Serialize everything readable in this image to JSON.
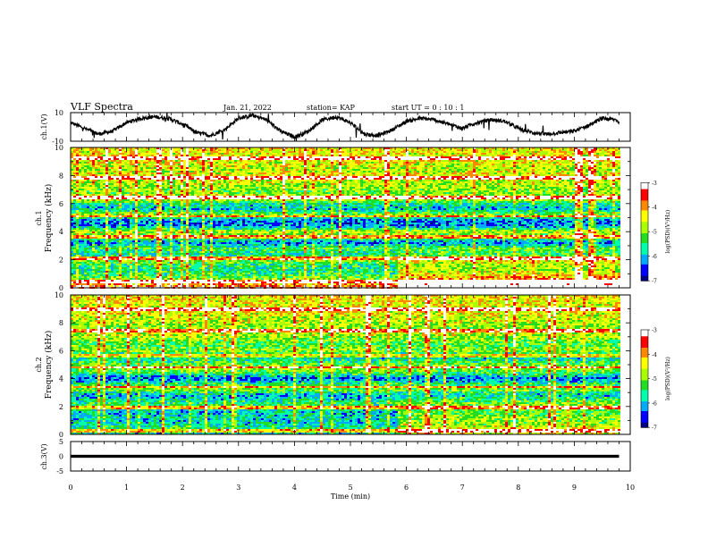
{
  "header": {
    "title": "VLF Spectra",
    "date": "Jan. 21, 2022",
    "station": "station= KAP",
    "start": "start  UT =   0 : 10 : 1"
  },
  "chart_data": [
    {
      "id": "ch1-waveform",
      "type": "line",
      "ylabel": "ch.1(V)",
      "ylim": [
        -10,
        10
      ],
      "yticks": [
        "10",
        "-10"
      ],
      "xlim": [
        0,
        10
      ],
      "x_extent": 9.8,
      "description_values": "noisy quasi-periodic waveform, amplitude about ±5 V, period about 1.5 min",
      "series": [
        {
          "x": [
            0,
            0.25,
            0.5,
            0.75,
            1.0,
            1.25,
            1.5,
            1.75,
            2.0,
            2.25,
            2.5,
            2.75,
            3.0,
            3.25,
            3.5,
            3.75,
            4.0,
            4.25,
            4.5,
            4.75,
            5.0,
            5.25,
            5.5,
            5.75,
            6.0,
            6.25,
            6.5,
            6.75,
            7.0,
            7.25,
            7.5,
            7.75,
            8.0,
            8.25,
            8.5,
            8.75,
            9.0,
            9.25,
            9.5,
            9.75,
            9.8
          ],
          "values": [
            3,
            -1,
            -5,
            -3,
            3,
            6,
            7,
            6,
            2,
            -4,
            -6,
            -2,
            6,
            8,
            5,
            -3,
            -7,
            -3,
            5,
            7,
            3,
            -5,
            -6,
            -2,
            4,
            6,
            5,
            2,
            -1,
            3,
            5,
            4,
            -1,
            -4,
            -5,
            -4,
            -3,
            1,
            6,
            5,
            3
          ]
        }
      ]
    },
    {
      "id": "ch1-spectrogram",
      "type": "heatmap",
      "xlabel": "",
      "ylabel": "ch.1\nFrequency (kHz)",
      "ylim": [
        0,
        10
      ],
      "yticks": [
        "0",
        "2",
        "4",
        "6",
        "8",
        "10"
      ],
      "xlim": [
        0,
        10
      ],
      "x_extent": 9.8,
      "colorbar": {
        "label": "log(PSD)(V²/Hz)",
        "range": [
          -7,
          -3
        ],
        "ticks": [
          "-3",
          "-4",
          "-5",
          "-6",
          "-7"
        ],
        "colors": [
          "#000080",
          "#0000ff",
          "#00aaff",
          "#00ffaa",
          "#22dd22",
          "#aaff00",
          "#ffff00",
          "#ff8800",
          "#ff0000",
          "#ffffff"
        ]
      },
      "profile": [
        {
          "f": 0.0,
          "v": -3.5
        },
        {
          "f": 0.4,
          "v": -4.3
        },
        {
          "f": 0.8,
          "v": -5.2
        },
        {
          "f": 1.2,
          "v": -5.6
        },
        {
          "f": 1.6,
          "v": -5.5
        },
        {
          "f": 2.0,
          "v": -4.8
        },
        {
          "f": 2.4,
          "v": -5.7
        },
        {
          "f": 2.8,
          "v": -5.3
        },
        {
          "f": 3.2,
          "v": -6.2
        },
        {
          "f": 3.6,
          "v": -5.2
        },
        {
          "f": 4.0,
          "v": -4.6
        },
        {
          "f": 4.4,
          "v": -6.2
        },
        {
          "f": 4.8,
          "v": -6.3
        },
        {
          "f": 5.2,
          "v": -4.9
        },
        {
          "f": 5.6,
          "v": -5.9
        },
        {
          "f": 6.0,
          "v": -5.6
        },
        {
          "f": 6.4,
          "v": -4.3
        },
        {
          "f": 6.8,
          "v": -5.0
        },
        {
          "f": 7.2,
          "v": -4.8
        },
        {
          "f": 7.6,
          "v": -4.6
        },
        {
          "f": 8.0,
          "v": -4.4
        },
        {
          "f": 8.4,
          "v": -4.7
        },
        {
          "f": 8.8,
          "v": -4.5
        },
        {
          "f": 9.2,
          "v": -4.4
        },
        {
          "f": 9.6,
          "v": -4.4
        },
        {
          "f": 10.0,
          "v": -4.3
        }
      ],
      "lines_khz": [
        0.5,
        2.1,
        3.6,
        5.1,
        6.4,
        7.8,
        9.2
      ],
      "late_enhancement": {
        "from_min": 5.8,
        "to_min": 9.8,
        "below_khz": 3.0,
        "delta": 0.9
      }
    },
    {
      "id": "ch2-spectrogram",
      "type": "heatmap",
      "xlabel": "",
      "ylabel": "ch.2\nFrequency (kHz)",
      "ylim": [
        0,
        10
      ],
      "yticks": [
        "0",
        "2",
        "4",
        "6",
        "8",
        "10"
      ],
      "xlim": [
        0,
        10
      ],
      "x_extent": 9.8,
      "colorbar": {
        "label": "log(PSD)(V²/Hz)",
        "range": [
          -7,
          -3
        ],
        "ticks": [
          "-3",
          "-4",
          "-5",
          "-6",
          "-7"
        ],
        "colors": [
          "#000080",
          "#0000ff",
          "#00aaff",
          "#00ffaa",
          "#22dd22",
          "#aaff00",
          "#ffff00",
          "#ff8800",
          "#ff0000",
          "#ffffff"
        ]
      },
      "profile": [
        {
          "f": 0.0,
          "v": -5.8
        },
        {
          "f": 0.4,
          "v": -5.4
        },
        {
          "f": 0.8,
          "v": -5.8
        },
        {
          "f": 1.2,
          "v": -5.7
        },
        {
          "f": 1.6,
          "v": -5.9
        },
        {
          "f": 2.0,
          "v": -5.3
        },
        {
          "f": 2.4,
          "v": -5.6
        },
        {
          "f": 2.8,
          "v": -6.1
        },
        {
          "f": 3.2,
          "v": -5.0
        },
        {
          "f": 3.6,
          "v": -5.4
        },
        {
          "f": 4.0,
          "v": -6.4
        },
        {
          "f": 4.4,
          "v": -5.3
        },
        {
          "f": 4.8,
          "v": -4.8
        },
        {
          "f": 5.2,
          "v": -5.4
        },
        {
          "f": 5.6,
          "v": -5.9
        },
        {
          "f": 6.0,
          "v": -4.9
        },
        {
          "f": 6.4,
          "v": -5.2
        },
        {
          "f": 6.8,
          "v": -5.0
        },
        {
          "f": 7.2,
          "v": -4.6
        },
        {
          "f": 7.6,
          "v": -4.9
        },
        {
          "f": 8.0,
          "v": -4.7
        },
        {
          "f": 8.4,
          "v": -4.6
        },
        {
          "f": 8.8,
          "v": -4.4
        },
        {
          "f": 9.2,
          "v": -4.5
        },
        {
          "f": 9.6,
          "v": -4.4
        },
        {
          "f": 10.0,
          "v": -4.3
        }
      ],
      "lines_khz": [
        0.3,
        1.9,
        3.4,
        4.8,
        5.6,
        7.4,
        9.0
      ],
      "late_enhancement": {
        "from_min": 5.8,
        "to_min": 9.8,
        "below_khz": 3.0,
        "delta": 0.8
      }
    },
    {
      "id": "ch3-waveform",
      "type": "line",
      "ylabel": "ch.3(V)",
      "ylim": [
        -5,
        5
      ],
      "yticks": [
        "5",
        "0",
        "-5"
      ],
      "xlabel": "Time  (min)",
      "xlim": [
        0,
        10
      ],
      "xticks": [
        "0",
        "1",
        "2",
        "3",
        "4",
        "5",
        "6",
        "7",
        "8",
        "9",
        "10"
      ],
      "x_extent": 9.8,
      "series": [
        {
          "x": [
            0,
            9.8
          ],
          "values": [
            0,
            0
          ],
          "band": [
            -0.5,
            0.5
          ]
        }
      ]
    }
  ]
}
